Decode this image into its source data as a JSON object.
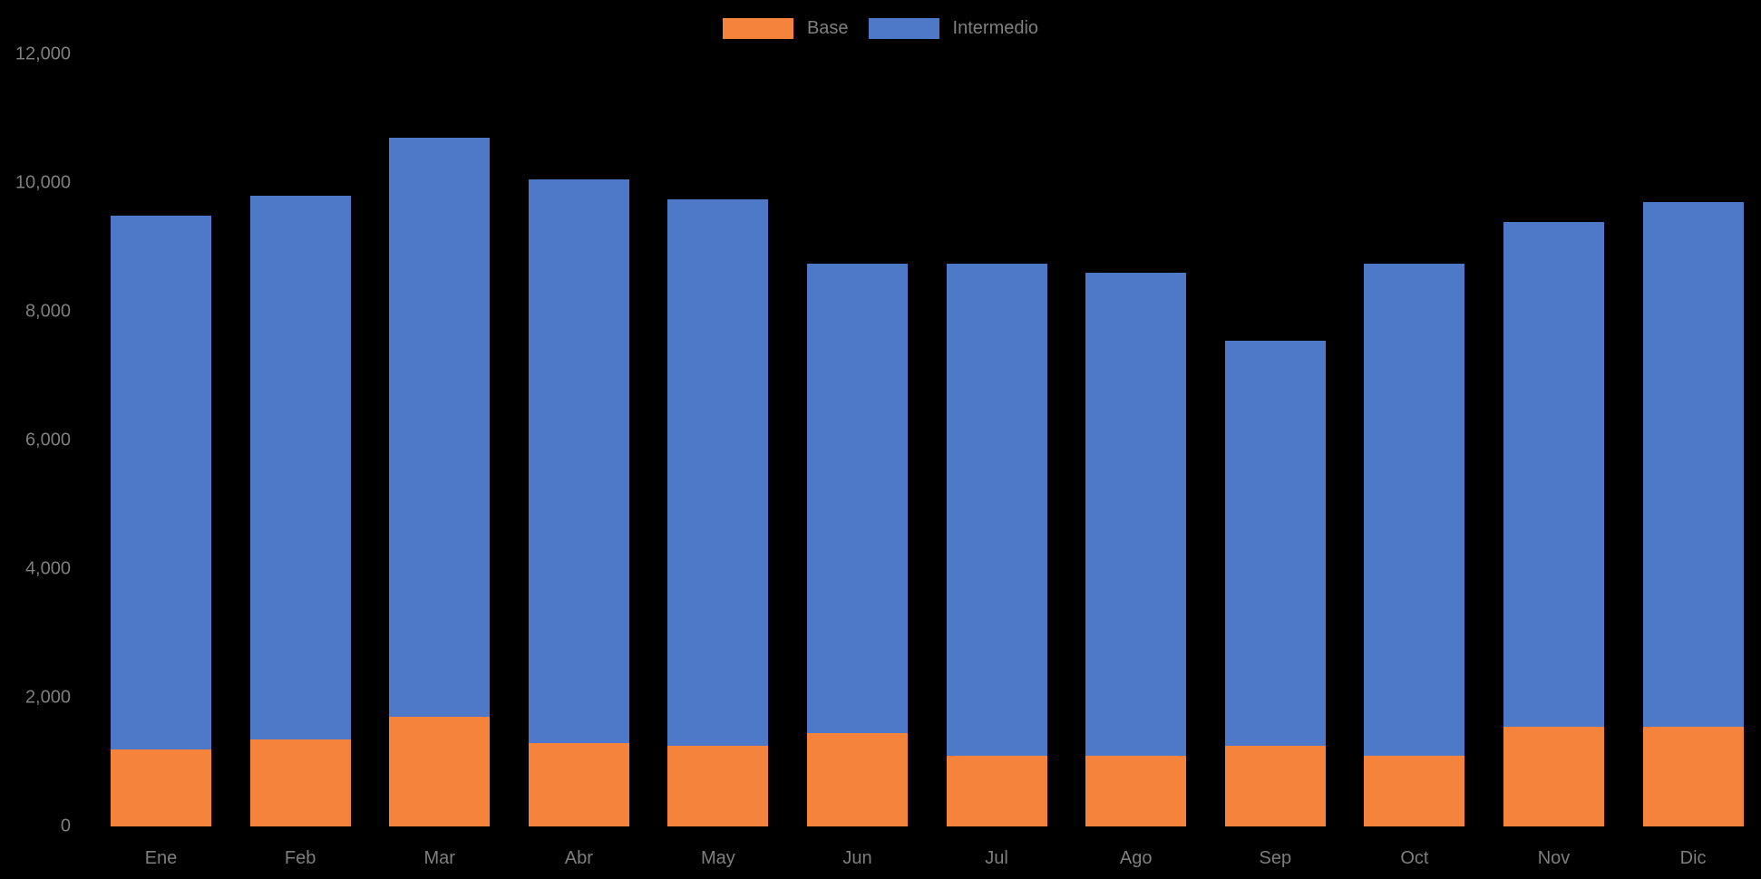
{
  "chart_data": {
    "type": "bar",
    "stacked": true,
    "title": "",
    "xlabel": "",
    "ylabel": "",
    "categories": [
      "Ene",
      "Feb",
      "Mar",
      "Abr",
      "May",
      "Jun",
      "Jul",
      "Ago",
      "Sep",
      "Oct",
      "Nov",
      "Dic"
    ],
    "series": [
      {
        "name": "Base",
        "color": "#F5833B",
        "values": [
          1200,
          1350,
          1700,
          1300,
          1250,
          1450,
          1100,
          1100,
          1250,
          1100,
          1550,
          1550
        ]
      },
      {
        "name": "Intermedio",
        "color": "#4E78C8",
        "values": [
          8300,
          8450,
          9000,
          8750,
          8500,
          7300,
          7650,
          7500,
          6300,
          7650,
          7850,
          8150
        ]
      }
    ],
    "stacked_totals": [
      9500,
      9800,
      10700,
      10050,
      9750,
      8750,
      8750,
      8600,
      7550,
      8750,
      9400,
      9700
    ],
    "ylim": [
      0,
      12000
    ],
    "y_ticks": [
      0,
      2000,
      4000,
      6000,
      8000,
      10000,
      12000
    ],
    "y_tick_labels": [
      "0",
      "2,000",
      "4,000",
      "6,000",
      "8,000",
      "10,000",
      "12,000"
    ],
    "grid": false,
    "legend_position": "top-center",
    "colors": {
      "background": "#000000",
      "label_text": "#7F7F7F"
    }
  }
}
